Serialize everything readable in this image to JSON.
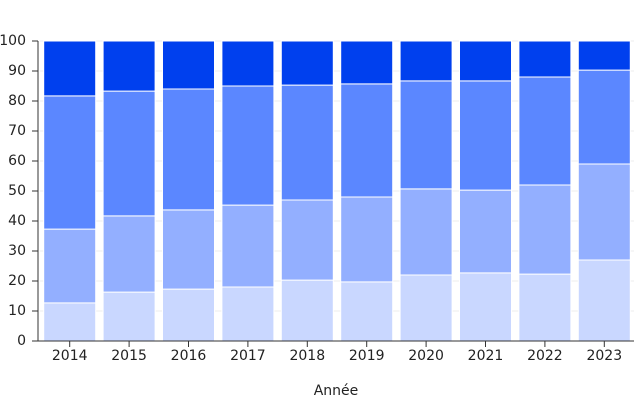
{
  "chart_data": {
    "type": "stacked_bar",
    "x_label": "Année",
    "categories": [
      "2014",
      "2015",
      "2016",
      "2017",
      "2018",
      "2019",
      "2020",
      "2021",
      "2022",
      "2023"
    ],
    "series": [
      {
        "color": "#c9d7ff",
        "values": [
          12.7,
          16.3,
          17.3,
          18,
          20.3,
          19.7,
          22,
          22.7,
          22.3,
          27
        ]
      },
      {
        "color": "#93afff",
        "values": [
          24.6,
          25.4,
          26.4,
          27.3,
          26.7,
          28.3,
          28.7,
          27.6,
          29.7,
          32
        ]
      },
      {
        "color": "#5b87ff",
        "values": [
          44.4,
          41.6,
          40.3,
          39.7,
          38.3,
          37.7,
          36,
          36.4,
          36,
          31.3
        ]
      },
      {
        "color": "#0040ee",
        "values": [
          18.3,
          16.7,
          16,
          15,
          14.7,
          14.3,
          13.3,
          13.3,
          12,
          9.7
        ]
      }
    ],
    "ylim": [
      0,
      100
    ],
    "yticks": [
      0,
      10,
      20,
      30,
      40,
      50,
      60,
      70,
      80,
      90,
      100
    ],
    "grid": true
  }
}
